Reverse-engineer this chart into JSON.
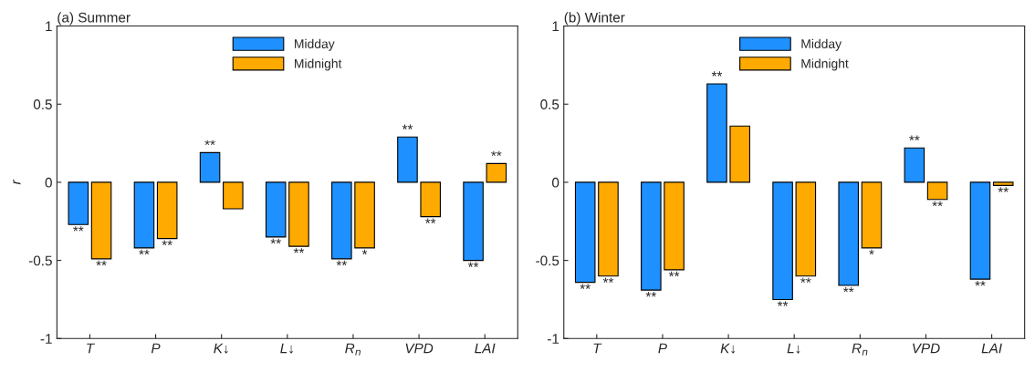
{
  "chart_data": [
    {
      "type": "bar",
      "title": "(a) Summer",
      "ylabel": "r",
      "categories": [
        "T",
        "P",
        "K↓",
        "L↓",
        "R$_{n}$",
        "VPD",
        "LAI"
      ],
      "ylim": [
        -1,
        1
      ],
      "yticks": [
        -1,
        -0.5,
        0,
        0.5,
        1
      ],
      "grid": false,
      "legend": "top",
      "series": [
        {
          "name": "Midday",
          "color": "#1e90ff",
          "values": [
            -0.27,
            -0.42,
            0.19,
            -0.35,
            -0.49,
            0.29,
            -0.5
          ],
          "value_labels": [
            "**",
            "**",
            "**",
            "**",
            "**",
            "**",
            "**"
          ]
        },
        {
          "name": "Midnight",
          "color": "#ffaa00",
          "values": [
            -0.49,
            -0.36,
            -0.17,
            -0.41,
            -0.42,
            -0.22,
            0.12
          ],
          "value_labels": [
            "**",
            "**",
            null,
            "**",
            "*",
            "**",
            "**"
          ]
        }
      ]
    },
    {
      "type": "bar",
      "title": "(b) Winter",
      "categories": [
        "T",
        "P",
        "K↓",
        "L↓",
        "R$_{n}$",
        "VPD",
        "LAI"
      ],
      "ylim": [
        -1,
        1
      ],
      "yticks": [
        -1,
        -0.5,
        0,
        0.5,
        1
      ],
      "grid": false,
      "legend": "top",
      "series": [
        {
          "name": "Midday",
          "color": "#1e90ff",
          "values": [
            -0.64,
            -0.69,
            0.63,
            -0.75,
            -0.66,
            0.22,
            -0.62
          ],
          "value_labels": [
            "**",
            "**",
            "**",
            "**",
            "**",
            "**",
            "**"
          ]
        },
        {
          "name": "Midnight",
          "color": "#ffaa00",
          "values": [
            -0.6,
            -0.56,
            0.36,
            -0.6,
            -0.42,
            -0.11,
            -0.02
          ],
          "value_labels": [
            "**",
            "**",
            null,
            "**",
            "*",
            "**",
            "**"
          ]
        }
      ]
    }
  ]
}
